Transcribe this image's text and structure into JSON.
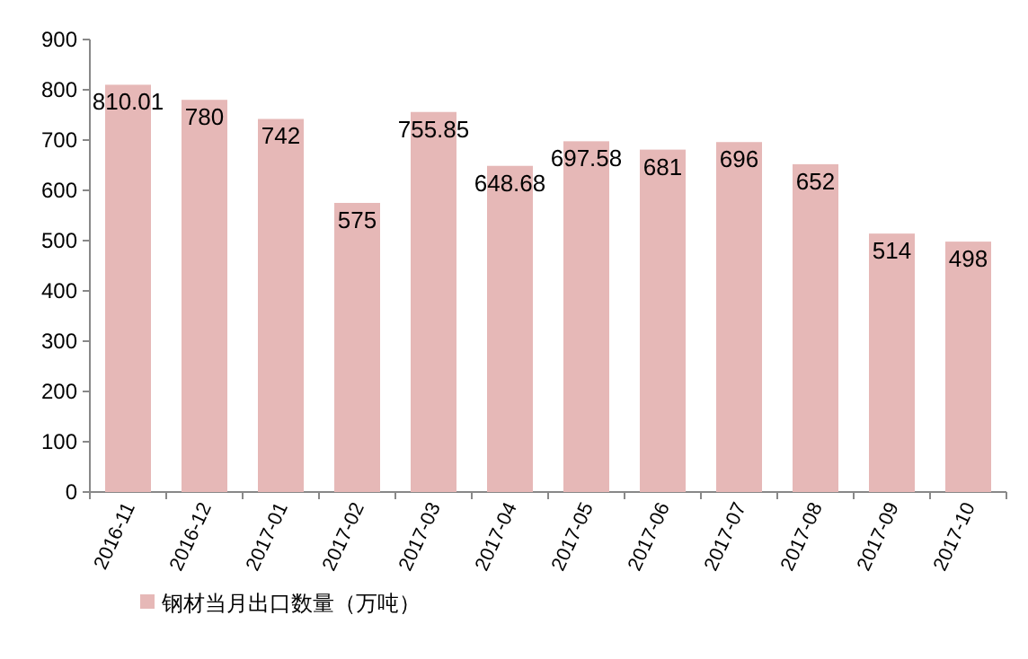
{
  "chart_data": {
    "type": "bar",
    "categories": [
      "2016-11",
      "2016-12",
      "2017-01",
      "2017-02",
      "2017-03",
      "2017-04",
      "2017-05",
      "2017-06",
      "2017-07",
      "2017-08",
      "2017-09",
      "2017-10"
    ],
    "series": [
      {
        "name": "钢材当月出口数量（万吨）",
        "color": "#e6b8b7",
        "values": [
          810.01,
          780,
          742,
          575,
          755.85,
          648.68,
          697.58,
          681,
          696,
          652,
          514,
          498
        ]
      }
    ],
    "ylim": [
      0,
      900
    ],
    "yticks": [
      0,
      100,
      200,
      300,
      400,
      500,
      600,
      700,
      800,
      900
    ],
    "data_labels": true,
    "legend": "bottom"
  }
}
